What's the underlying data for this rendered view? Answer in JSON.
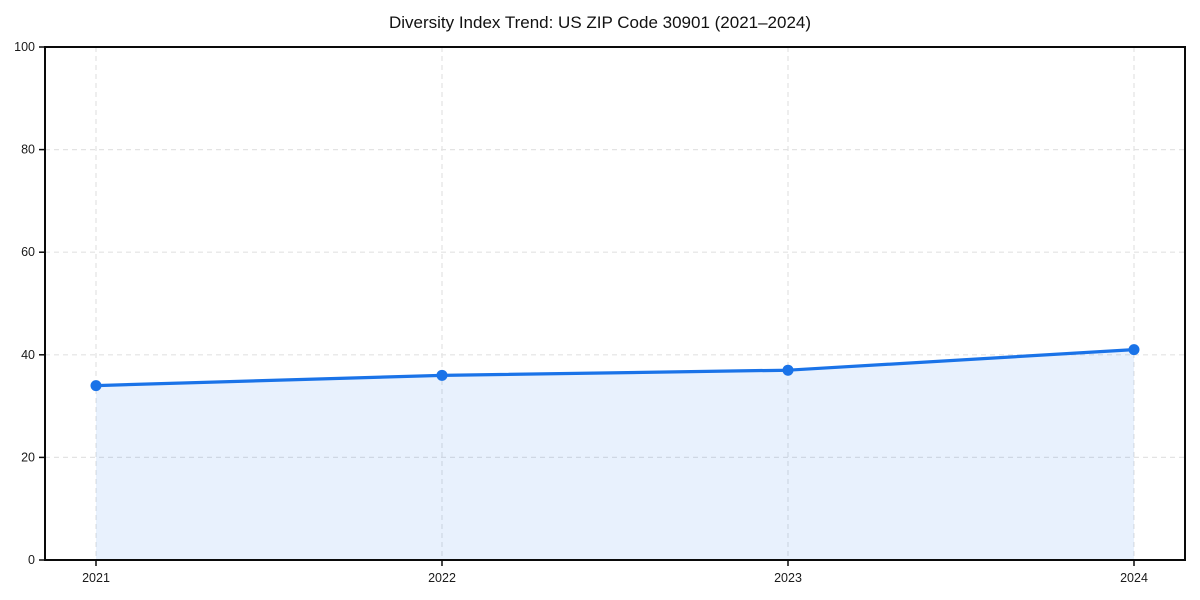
{
  "chart_data": {
    "type": "line",
    "title": "Diversity Index Trend: US ZIP Code 30901 (2021–2024)",
    "x": [
      "2021",
      "2022",
      "2023",
      "2024"
    ],
    "series": [
      {
        "name": "Diversity Index",
        "values": [
          34,
          36,
          37,
          41
        ]
      }
    ],
    "xlabel": "",
    "ylabel": "",
    "ylim": [
      0,
      100
    ],
    "yticks": [
      0,
      20,
      40,
      60,
      80,
      100
    ],
    "grid": true,
    "grid_style": "dashed",
    "legend_position": "none",
    "marker": "circle",
    "area_fill": true,
    "colors": {
      "line": "#1a73e8",
      "marker": "#1a73e8",
      "area_fill": "rgba(26,115,232,0.10)",
      "grid": "#e3e3e3",
      "axis": "#0a0a0a",
      "tick_label": "#1a1a1a",
      "background": "#ffffff"
    }
  }
}
